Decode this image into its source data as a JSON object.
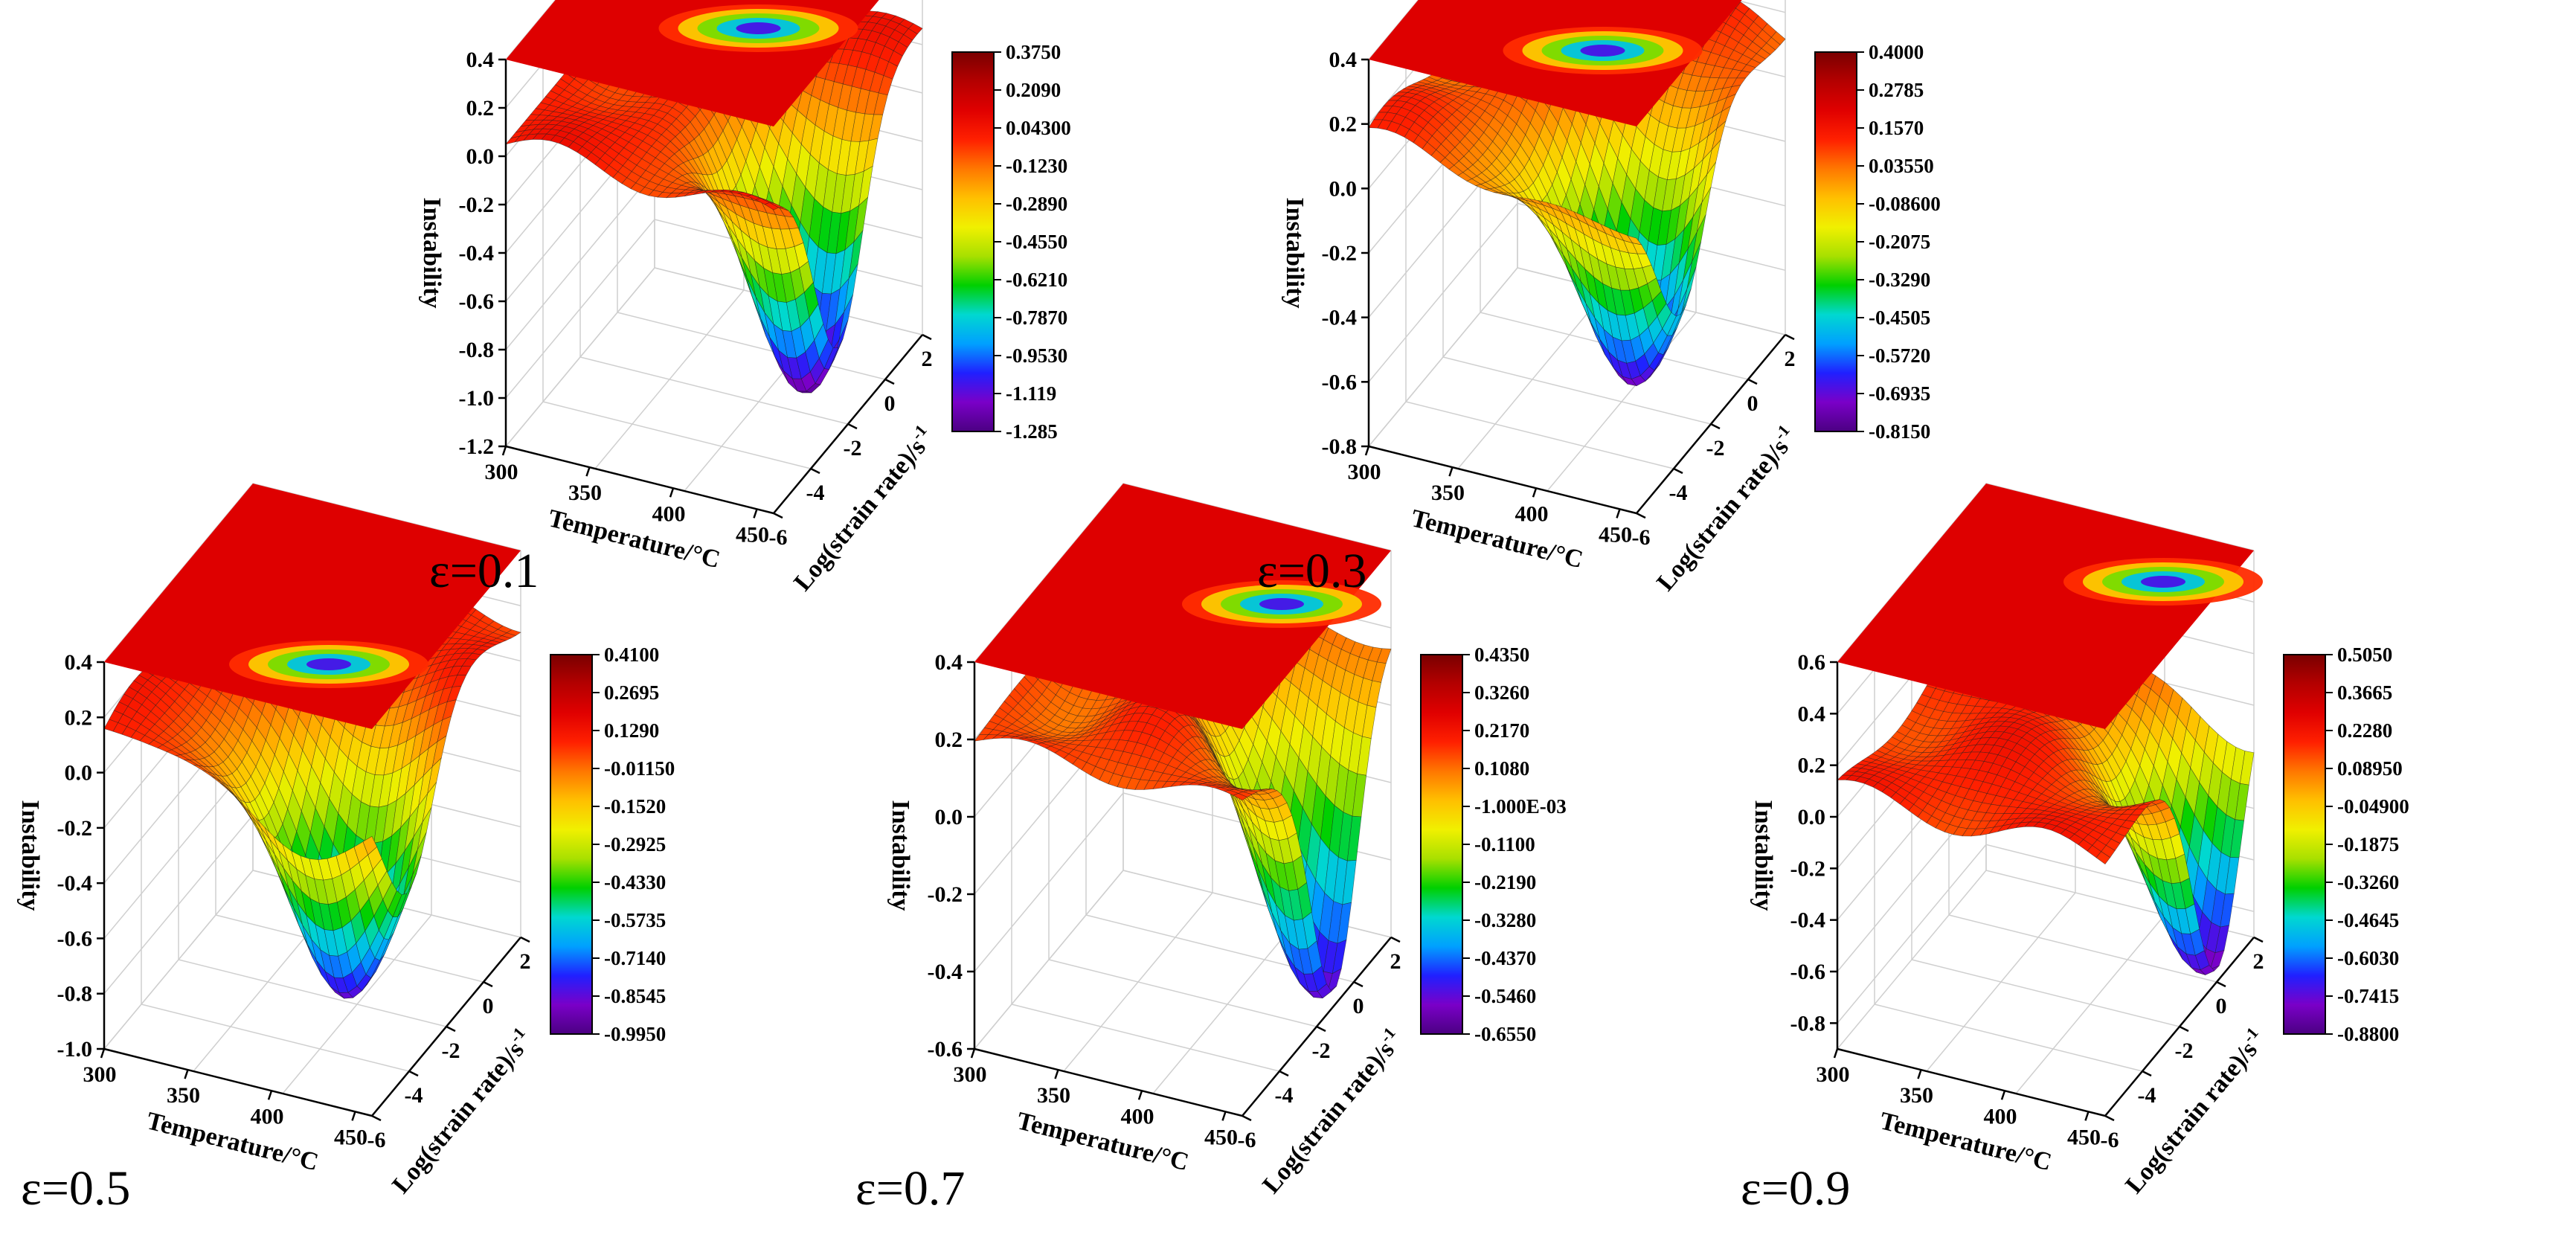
{
  "figure": {
    "colormap": [
      "#4b0082",
      "#7a00c8",
      "#2020ff",
      "#00a0ff",
      "#00d8d0",
      "#00d000",
      "#a8e000",
      "#f0f000",
      "#ffc000",
      "#ff7800",
      "#ff2000",
      "#e00000",
      "#b40000",
      "#7a0000"
    ],
    "surface_color": "#e41e00"
  },
  "chart_data": [
    {
      "type": "surface3d",
      "strain": "ε=0.1",
      "xlabel": "Temperature/°C",
      "ylabel": "Log(strain rate)/s",
      "ylabel_sup": "-1",
      "zlabel": "Instability",
      "x_ticks": [
        "300",
        "350",
        "400",
        "450"
      ],
      "y_ticks": [
        "-6",
        "-4",
        "-2",
        "0",
        "2"
      ],
      "z_ticks": [
        "0.4",
        "0.2",
        "0.0",
        "-0.2",
        "-0.4",
        "-0.6",
        "-0.8",
        "-1.0",
        "-1.2"
      ],
      "zlim": [
        -1.2,
        0.4
      ],
      "colorbar_ticks": [
        "0.3750",
        "0.2090",
        "0.04300",
        "-0.1230",
        "-0.2890",
        "-0.4550",
        "-0.6210",
        "-0.7870",
        "-0.9530",
        "-1.119",
        "-1.285"
      ],
      "surface": {
        "base": 0.05,
        "min": -1.0,
        "min_at_T": 440,
        "min_at_lnr": -2.5
      }
    },
    {
      "type": "surface3d",
      "strain": "ε=0.3",
      "xlabel": "Temperature/°C",
      "ylabel": "Log(strain rate)/s",
      "ylabel_sup": "-1",
      "zlabel": "Instability",
      "x_ticks": [
        "300",
        "350",
        "400",
        "450"
      ],
      "y_ticks": [
        "-6",
        "-4",
        "-2",
        "0",
        "2"
      ],
      "z_ticks": [
        "0.4",
        "0.2",
        "0.0",
        "-0.2",
        "-0.4",
        "-0.6",
        "-0.8"
      ],
      "zlim": [
        -0.8,
        0.4
      ],
      "colorbar_ticks": [
        "0.4000",
        "0.2785",
        "0.1570",
        "0.03550",
        "-0.08600",
        "-0.2075",
        "-0.3290",
        "-0.4505",
        "-0.5720",
        "-0.6935",
        "-0.8150"
      ],
      "surface": {
        "base": 0.15,
        "min": -0.62,
        "min_at_T": 430,
        "min_at_lnr": -3.5
      }
    },
    {
      "type": "surface3d",
      "strain": "ε=0.5",
      "xlabel": "Temperature/°C",
      "ylabel": "Log(strain rate)/s",
      "ylabel_sup": "-1",
      "zlabel": "Instability",
      "x_ticks": [
        "300",
        "350",
        "400",
        "450"
      ],
      "y_ticks": [
        "-6",
        "-4",
        "-2",
        "0",
        "2"
      ],
      "z_ticks": [
        "0.4",
        "0.2",
        "0.0",
        "-0.2",
        "-0.4",
        "-0.6",
        "-0.8",
        "-1.0"
      ],
      "zlim": [
        -1.0,
        0.4
      ],
      "colorbar_ticks": [
        "0.4100",
        "0.2695",
        "0.1290",
        "-0.01150",
        "-0.1520",
        "-0.2925",
        "-0.4330",
        "-0.5735",
        "-0.7140",
        "-0.8545",
        "-0.9950"
      ],
      "surface": {
        "base": 0.15,
        "min": -0.82,
        "min_at_T": 420,
        "min_at_lnr": -4
      }
    },
    {
      "type": "surface3d",
      "strain": "ε=0.7",
      "xlabel": "Temperature/°C",
      "ylabel": "Log(strain rate)/s",
      "ylabel_sup": "-1",
      "zlabel": "Instability",
      "x_ticks": [
        "300",
        "350",
        "400",
        "450"
      ],
      "y_ticks": [
        "-6",
        "-4",
        "-2",
        "0",
        "2"
      ],
      "z_ticks": [
        "0.4",
        "0.2",
        "0.0",
        "-0.2",
        "-0.4",
        "-0.6"
      ],
      "zlim": [
        -0.6,
        0.4
      ],
      "colorbar_ticks": [
        "0.4350",
        "0.3260",
        "0.2170",
        "0.1080",
        "-1.000E-03",
        "-0.1100",
        "-0.2190",
        "-0.3280",
        "-0.4370",
        "-0.5460",
        "-0.6550"
      ],
      "surface": {
        "base": 0.2,
        "min": -0.62,
        "min_at_T": 450,
        "min_at_lnr": -1
      }
    },
    {
      "type": "surface3d",
      "strain": "ε=0.9",
      "xlabel": "Temperature/°C",
      "ylabel": "Log(strain rate)/s",
      "ylabel_sup": "-1",
      "zlabel": "Instability",
      "x_ticks": [
        "300",
        "350",
        "400",
        "450"
      ],
      "y_ticks": [
        "-6",
        "-4",
        "-2",
        "0",
        "2"
      ],
      "z_ticks": [
        "0.6",
        "0.4",
        "0.2",
        "0.0",
        "-0.2",
        "-0.4",
        "-0.6",
        "-0.8"
      ],
      "zlim": [
        -0.9,
        0.6
      ],
      "colorbar_ticks": [
        "0.5050",
        "0.3665",
        "0.2280",
        "0.08950",
        "-0.04900",
        "-0.1875",
        "-0.3260",
        "-0.4645",
        "-0.6030",
        "-0.7415",
        "-0.8800"
      ],
      "surface": {
        "base": 0.1,
        "min": -0.88,
        "min_at_T": 450,
        "min_at_lnr": 0
      }
    }
  ]
}
